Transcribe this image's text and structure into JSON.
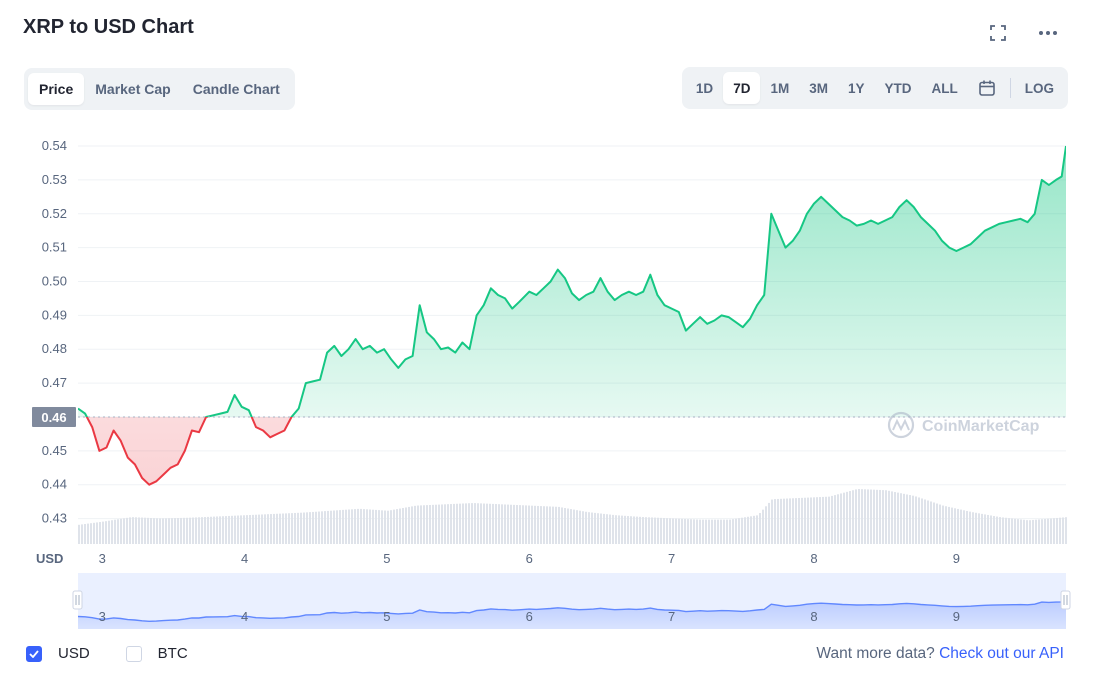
{
  "header": {
    "title": "XRP to USD Chart"
  },
  "icons": {
    "fullscreen": "fullscreen-icon",
    "more": "more-horizontal-icon",
    "calendar": "calendar-icon",
    "brand": "coinmarketcap-logo"
  },
  "view_tabs": [
    {
      "label": "Price",
      "active": true
    },
    {
      "label": "Market Cap",
      "active": false
    },
    {
      "label": "Candle Chart",
      "active": false
    }
  ],
  "range_tabs": [
    {
      "label": "1D",
      "active": false
    },
    {
      "label": "7D",
      "active": true
    },
    {
      "label": "1M",
      "active": false
    },
    {
      "label": "3M",
      "active": false
    },
    {
      "label": "1Y",
      "active": false
    },
    {
      "label": "YTD",
      "active": false
    },
    {
      "label": "ALL",
      "active": false
    }
  ],
  "log_label": "LOG",
  "watermark": "CoinMarketCap",
  "chart_data": {
    "type": "area",
    "title": "XRP to USD Chart",
    "ylabel": "USD",
    "ylim": [
      0.4225,
      0.5465
    ],
    "y_ticks": [
      "0.43",
      "0.44",
      "0.45",
      "0.46",
      "0.47",
      "0.48",
      "0.49",
      "0.50",
      "0.51",
      "0.52",
      "0.53",
      "0.54"
    ],
    "xlim": [
      2.83,
      9.77
    ],
    "x_ticks": [
      "3",
      "4",
      "5",
      "6",
      "7",
      "8",
      "9"
    ],
    "reference_price": 0.46,
    "reference_label": "0.46",
    "grid": "horizontal",
    "colors": {
      "up": "#16c784",
      "down": "#ea3943",
      "navigator": "#6188ff"
    },
    "series": [
      {
        "values": [
          [
            2.83,
            0.4625
          ],
          [
            2.88,
            0.461
          ],
          [
            2.93,
            0.457
          ],
          [
            2.98,
            0.45
          ],
          [
            3.03,
            0.451
          ],
          [
            3.08,
            0.456
          ],
          [
            3.13,
            0.453
          ],
          [
            3.18,
            0.448
          ],
          [
            3.23,
            0.446
          ],
          [
            3.28,
            0.442
          ],
          [
            3.33,
            0.44
          ],
          [
            3.38,
            0.441
          ],
          [
            3.43,
            0.443
          ],
          [
            3.48,
            0.445
          ],
          [
            3.53,
            0.446
          ],
          [
            3.58,
            0.45
          ],
          [
            3.63,
            0.456
          ],
          [
            3.68,
            0.4555
          ],
          [
            3.73,
            0.46
          ],
          [
            3.78,
            0.4605
          ],
          [
            3.83,
            0.461
          ],
          [
            3.88,
            0.4615
          ],
          [
            3.93,
            0.4665
          ],
          [
            3.98,
            0.463
          ],
          [
            4.03,
            0.462
          ],
          [
            4.08,
            0.457
          ],
          [
            4.13,
            0.456
          ],
          [
            4.18,
            0.454
          ],
          [
            4.23,
            0.455
          ],
          [
            4.28,
            0.456
          ],
          [
            4.33,
            0.46
          ],
          [
            4.38,
            0.4625
          ],
          [
            4.43,
            0.47
          ],
          [
            4.48,
            0.4705
          ],
          [
            4.53,
            0.471
          ],
          [
            4.58,
            0.479
          ],
          [
            4.63,
            0.481
          ],
          [
            4.68,
            0.478
          ],
          [
            4.73,
            0.48
          ],
          [
            4.78,
            0.483
          ],
          [
            4.83,
            0.48
          ],
          [
            4.88,
            0.481
          ],
          [
            4.93,
            0.479
          ],
          [
            4.98,
            0.48
          ],
          [
            5.03,
            0.477
          ],
          [
            5.08,
            0.4745
          ],
          [
            5.13,
            0.477
          ],
          [
            5.18,
            0.478
          ],
          [
            5.23,
            0.493
          ],
          [
            5.28,
            0.485
          ],
          [
            5.33,
            0.483
          ],
          [
            5.38,
            0.48
          ],
          [
            5.43,
            0.4805
          ],
          [
            5.48,
            0.479
          ],
          [
            5.53,
            0.482
          ],
          [
            5.58,
            0.48
          ],
          [
            5.63,
            0.49
          ],
          [
            5.68,
            0.493
          ],
          [
            5.73,
            0.498
          ],
          [
            5.78,
            0.496
          ],
          [
            5.83,
            0.495
          ],
          [
            5.88,
            0.492
          ],
          [
            5.93,
            0.494
          ],
          [
            6.0,
            0.497
          ],
          [
            6.05,
            0.496
          ],
          [
            6.1,
            0.498
          ],
          [
            6.15,
            0.5
          ],
          [
            6.2,
            0.5035
          ],
          [
            6.25,
            0.501
          ],
          [
            6.3,
            0.4965
          ],
          [
            6.35,
            0.4945
          ],
          [
            6.4,
            0.496
          ],
          [
            6.45,
            0.497
          ],
          [
            6.5,
            0.501
          ],
          [
            6.55,
            0.497
          ],
          [
            6.6,
            0.4945
          ],
          [
            6.65,
            0.496
          ],
          [
            6.7,
            0.497
          ],
          [
            6.75,
            0.496
          ],
          [
            6.8,
            0.497
          ],
          [
            6.85,
            0.502
          ],
          [
            6.9,
            0.496
          ],
          [
            6.95,
            0.493
          ],
          [
            7.0,
            0.492
          ],
          [
            7.05,
            0.491
          ],
          [
            7.1,
            0.4855
          ],
          [
            7.15,
            0.4875
          ],
          [
            7.2,
            0.4895
          ],
          [
            7.25,
            0.4875
          ],
          [
            7.3,
            0.4885
          ],
          [
            7.35,
            0.49
          ],
          [
            7.4,
            0.4895
          ],
          [
            7.45,
            0.488
          ],
          [
            7.5,
            0.4865
          ],
          [
            7.55,
            0.489
          ],
          [
            7.6,
            0.493
          ],
          [
            7.65,
            0.496
          ],
          [
            7.7,
            0.52
          ],
          [
            7.75,
            0.515
          ],
          [
            7.8,
            0.51
          ],
          [
            7.85,
            0.512
          ],
          [
            7.9,
            0.515
          ],
          [
            7.95,
            0.52
          ],
          [
            8.0,
            0.523
          ],
          [
            8.05,
            0.525
          ],
          [
            8.1,
            0.523
          ],
          [
            8.15,
            0.521
          ],
          [
            8.2,
            0.519
          ],
          [
            8.25,
            0.518
          ],
          [
            8.3,
            0.5165
          ],
          [
            8.35,
            0.517
          ],
          [
            8.4,
            0.518
          ],
          [
            8.45,
            0.517
          ],
          [
            8.5,
            0.518
          ],
          [
            8.55,
            0.519
          ],
          [
            8.6,
            0.522
          ],
          [
            8.65,
            0.524
          ],
          [
            8.7,
            0.522
          ],
          [
            8.75,
            0.519
          ],
          [
            8.8,
            0.517
          ],
          [
            8.85,
            0.515
          ],
          [
            8.9,
            0.512
          ],
          [
            8.95,
            0.51
          ],
          [
            9.0,
            0.509
          ],
          [
            9.05,
            0.51
          ],
          [
            9.1,
            0.511
          ],
          [
            9.15,
            0.513
          ],
          [
            9.2,
            0.515
          ],
          [
            9.25,
            0.516
          ],
          [
            9.3,
            0.517
          ],
          [
            9.35,
            0.5175
          ],
          [
            9.4,
            0.518
          ],
          [
            9.45,
            0.5185
          ],
          [
            9.5,
            0.5175
          ],
          [
            9.55,
            0.52
          ],
          [
            9.6,
            0.53
          ],
          [
            9.65,
            0.5285
          ],
          [
            9.7,
            0.53
          ],
          [
            9.74,
            0.531
          ],
          [
            9.77,
            0.54
          ]
        ]
      }
    ],
    "volume_relative": [
      [
        2.83,
        0.3
      ],
      [
        3.0,
        0.35
      ],
      [
        3.2,
        0.42
      ],
      [
        3.4,
        0.4
      ],
      [
        3.6,
        0.41
      ],
      [
        3.8,
        0.43
      ],
      [
        4.0,
        0.45
      ],
      [
        4.2,
        0.47
      ],
      [
        4.4,
        0.49
      ],
      [
        4.6,
        0.52
      ],
      [
        4.8,
        0.55
      ],
      [
        5.0,
        0.52
      ],
      [
        5.2,
        0.6
      ],
      [
        5.4,
        0.62
      ],
      [
        5.6,
        0.64
      ],
      [
        5.8,
        0.62
      ],
      [
        6.0,
        0.6
      ],
      [
        6.2,
        0.58
      ],
      [
        6.4,
        0.5
      ],
      [
        6.6,
        0.45
      ],
      [
        6.8,
        0.42
      ],
      [
        7.0,
        0.4
      ],
      [
        7.2,
        0.38
      ],
      [
        7.4,
        0.38
      ],
      [
        7.6,
        0.45
      ],
      [
        7.7,
        0.7
      ],
      [
        7.9,
        0.72
      ],
      [
        8.1,
        0.74
      ],
      [
        8.3,
        0.86
      ],
      [
        8.5,
        0.84
      ],
      [
        8.7,
        0.75
      ],
      [
        8.9,
        0.6
      ],
      [
        9.1,
        0.5
      ],
      [
        9.3,
        0.42
      ],
      [
        9.5,
        0.37
      ],
      [
        9.77,
        0.42
      ]
    ]
  },
  "footer": {
    "checkboxes": [
      {
        "label": "USD",
        "checked": true
      },
      {
        "label": "BTC",
        "checked": false
      }
    ],
    "more_text": "Want more data?",
    "more_link": "Check out our API"
  }
}
